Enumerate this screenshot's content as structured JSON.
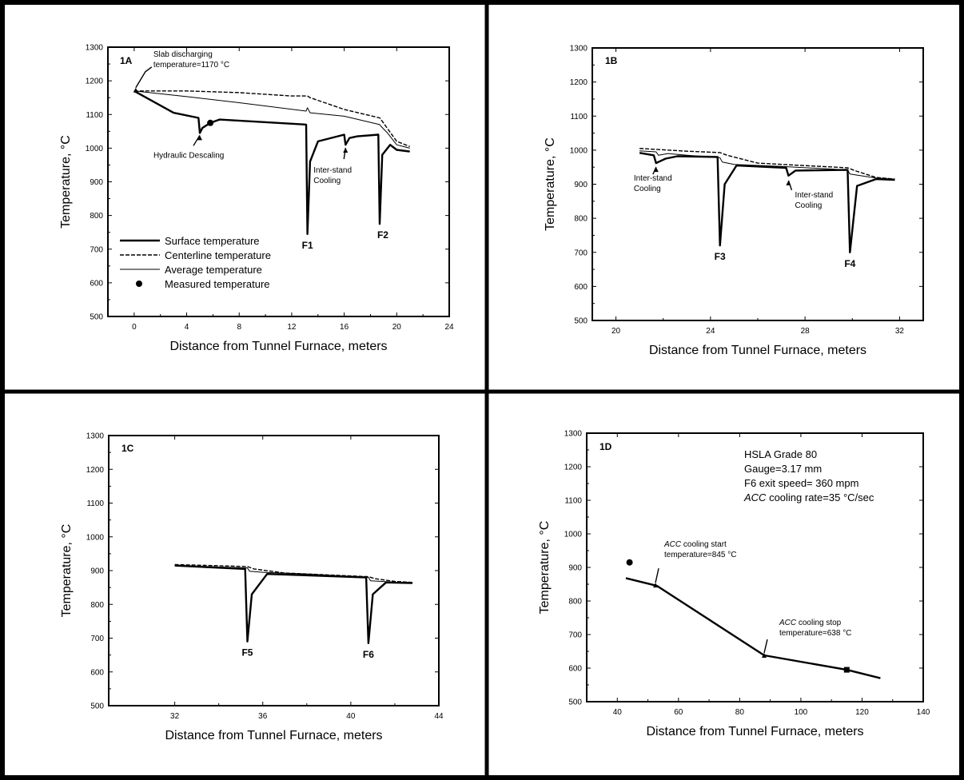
{
  "chart_data": [
    {
      "panel_label": "1A",
      "type": "line",
      "xlabel": "Distance from Tunnel Furnace, meters",
      "ylabel": "Temperature, °C",
      "xlim": [
        -2,
        24
      ],
      "ylim": [
        500,
        1300
      ],
      "xticks": [
        "0",
        "4",
        "8",
        "12",
        "16",
        "20",
        "24"
      ],
      "yticks": [
        "500",
        "600",
        "700",
        "800",
        "900",
        "1000",
        "1100",
        "1200",
        "1300"
      ],
      "legend_position": "lower-left",
      "legend": [
        {
          "label": "Surface temperature",
          "style": "thick"
        },
        {
          "label": "Centerline temperature",
          "style": "dashed"
        },
        {
          "label": "Average temperature",
          "style": "thin"
        },
        {
          "label": "Measured temperature",
          "style": "marker"
        }
      ],
      "series": [
        {
          "name": "Centerline temperature",
          "style": "dashed",
          "x": [
            0,
            4,
            8,
            12,
            13.2,
            13.4,
            16,
            18.7,
            18.9,
            20,
            21
          ],
          "y": [
            1170,
            1170,
            1165,
            1155,
            1155,
            1150,
            1115,
            1090,
            1080,
            1020,
            1005
          ]
        },
        {
          "name": "Average temperature",
          "style": "thin",
          "x": [
            0,
            4,
            8,
            13.1,
            13.2,
            13.4,
            16,
            18.7,
            18.8,
            19.3,
            20,
            21
          ],
          "y": [
            1170,
            1153,
            1135,
            1110,
            1120,
            1105,
            1095,
            1070,
            1065,
            1045,
            1010,
            1000
          ]
        },
        {
          "name": "Surface temperature",
          "style": "thick",
          "x": [
            0,
            3,
            4.9,
            5.0,
            5.2,
            5.8,
            6.5,
            13.1,
            13.2,
            13.4,
            14,
            16,
            16.1,
            16.4,
            17,
            18.6,
            18.7,
            18.9,
            19.5,
            20,
            21
          ],
          "y": [
            1170,
            1105,
            1090,
            1045,
            1060,
            1075,
            1085,
            1070,
            745,
            960,
            1020,
            1040,
            1010,
            1030,
            1035,
            1040,
            775,
            980,
            1010,
            995,
            990
          ]
        }
      ],
      "measured_points": [
        {
          "x": 5.8,
          "y": 1075
        }
      ],
      "annotations": [
        {
          "text": "Slab discharging",
          "text2": "temperature=1170 °C",
          "x": 0,
          "y": 1170
        },
        {
          "text": "Hydraulic Descaling",
          "x": 5.0,
          "y": 1050
        },
        {
          "text": "Inter-stand",
          "text2": "Cooling",
          "x": 16.1,
          "y": 1015
        },
        {
          "text": "F1",
          "x": 13.2,
          "y": 745
        },
        {
          "text": "F2",
          "x": 18.7,
          "y": 775
        }
      ]
    },
    {
      "panel_label": "1B",
      "type": "line",
      "xlabel": "Distance from Tunnel Furnace, meters",
      "ylabel": "Temperature, °C",
      "xlim": [
        19,
        33
      ],
      "ylim": [
        500,
        1300
      ],
      "xticks": [
        "20",
        "24",
        "28",
        "32"
      ],
      "yticks": [
        "500",
        "600",
        "700",
        "800",
        "900",
        "1000",
        "1100",
        "1200",
        "1300"
      ],
      "series": [
        {
          "name": "Centerline temperature",
          "style": "dashed",
          "x": [
            21,
            23,
            24.4,
            24.7,
            26,
            29.8,
            30.1,
            31,
            31.8
          ],
          "y": [
            1005,
            997,
            993,
            985,
            962,
            948,
            940,
            920,
            915
          ]
        },
        {
          "name": "Average temperature",
          "style": "thin",
          "x": [
            21,
            21.7,
            21.8,
            22.2,
            23,
            24.4,
            24.5,
            25,
            27,
            29.8,
            29.9,
            31,
            31.8
          ],
          "y": [
            998,
            995,
            985,
            990,
            985,
            978,
            965,
            958,
            952,
            942,
            930,
            918,
            915
          ]
        },
        {
          "name": "Surface temperature",
          "style": "thick",
          "x": [
            21,
            21.6,
            21.7,
            22.1,
            22.6,
            24.3,
            24.4,
            24.6,
            25.1,
            27.2,
            27.3,
            27.6,
            29.8,
            29.9,
            30.2,
            31,
            31.8
          ],
          "y": [
            992,
            985,
            962,
            975,
            982,
            980,
            720,
            900,
            955,
            948,
            925,
            940,
            942,
            700,
            895,
            915,
            913
          ]
        }
      ],
      "measured_points": [],
      "annotations": [
        {
          "text": "Inter-stand",
          "text2": "Cooling",
          "x": 21.7,
          "y": 962
        },
        {
          "text": "Inter-stand",
          "text2": "Cooling",
          "x": 27.3,
          "y": 925
        },
        {
          "text": "F3",
          "x": 24.4,
          "y": 720
        },
        {
          "text": "F4",
          "x": 29.9,
          "y": 700
        }
      ]
    },
    {
      "panel_label": "1C",
      "type": "line",
      "xlabel": "Distance from Tunnel Furnace, meters",
      "ylabel": "Temperature, °C",
      "xlim": [
        29,
        44
      ],
      "ylim": [
        500,
        1300
      ],
      "xticks": [
        "32",
        "36",
        "40",
        "44"
      ],
      "yticks": [
        "500",
        "600",
        "700",
        "800",
        "900",
        "1000",
        "1100",
        "1200",
        "1300"
      ],
      "series": [
        {
          "name": "Centerline temperature",
          "style": "dashed",
          "x": [
            32,
            35.3,
            35.6,
            37,
            40.8,
            41.1,
            42,
            42.8
          ],
          "y": [
            918,
            912,
            905,
            893,
            882,
            876,
            868,
            865
          ]
        },
        {
          "name": "Average temperature",
          "style": "thin",
          "x": [
            32,
            35.3,
            35.4,
            36,
            38,
            40.8,
            40.9,
            42,
            42.8
          ],
          "y": [
            915,
            908,
            898,
            895,
            890,
            880,
            870,
            866,
            865
          ]
        },
        {
          "name": "Surface temperature",
          "style": "thick",
          "x": [
            32,
            35.2,
            35.3,
            35.5,
            36.2,
            40.7,
            40.8,
            41.0,
            41.6,
            42.8
          ],
          "y": [
            915,
            905,
            690,
            830,
            890,
            880,
            685,
            830,
            865,
            863
          ]
        }
      ],
      "measured_points": [],
      "annotations": [
        {
          "text": "F5",
          "x": 35.3,
          "y": 690
        },
        {
          "text": "F6",
          "x": 40.8,
          "y": 685
        }
      ]
    },
    {
      "panel_label": "1D",
      "type": "line",
      "xlabel": "Distance from Tunnel Furnace, meters",
      "ylabel": "Temperature, °C",
      "xlim": [
        30,
        140
      ],
      "ylim": [
        500,
        1300
      ],
      "xticks": [
        "40",
        "60",
        "80",
        "100",
        "120",
        "140"
      ],
      "yticks": [
        "500",
        "600",
        "700",
        "800",
        "900",
        "1000",
        "1100",
        "1200",
        "1300"
      ],
      "info_lines": [
        {
          "pre": "",
          "italic": "",
          "post": "HSLA Grade 80"
        },
        {
          "pre": "",
          "italic": "",
          "post": "Gauge=3.17 mm"
        },
        {
          "pre": "",
          "italic": "",
          "post": "F6 exit speed= 360 mpm"
        },
        {
          "pre": "",
          "italic": "ACC",
          "post": " cooling rate=35 °C/sec"
        }
      ],
      "series": [
        {
          "name": "Temperature",
          "style": "thick",
          "x": [
            42.8,
            53,
            88,
            115,
            126
          ],
          "y": [
            868,
            845,
            638,
            595,
            570
          ]
        }
      ],
      "measured_points": [
        {
          "x": 44,
          "y": 915
        },
        {
          "x": 115,
          "y": 595
        }
      ],
      "annotations": [
        {
          "text": "ACC",
          "rest": " cooling start",
          "text2": "temperature=845 °C",
          "x": 53,
          "y": 845
        },
        {
          "text": "ACC",
          "rest": " cooling stop",
          "text2": "temperature=638 °C",
          "x": 88,
          "y": 638
        }
      ]
    }
  ]
}
